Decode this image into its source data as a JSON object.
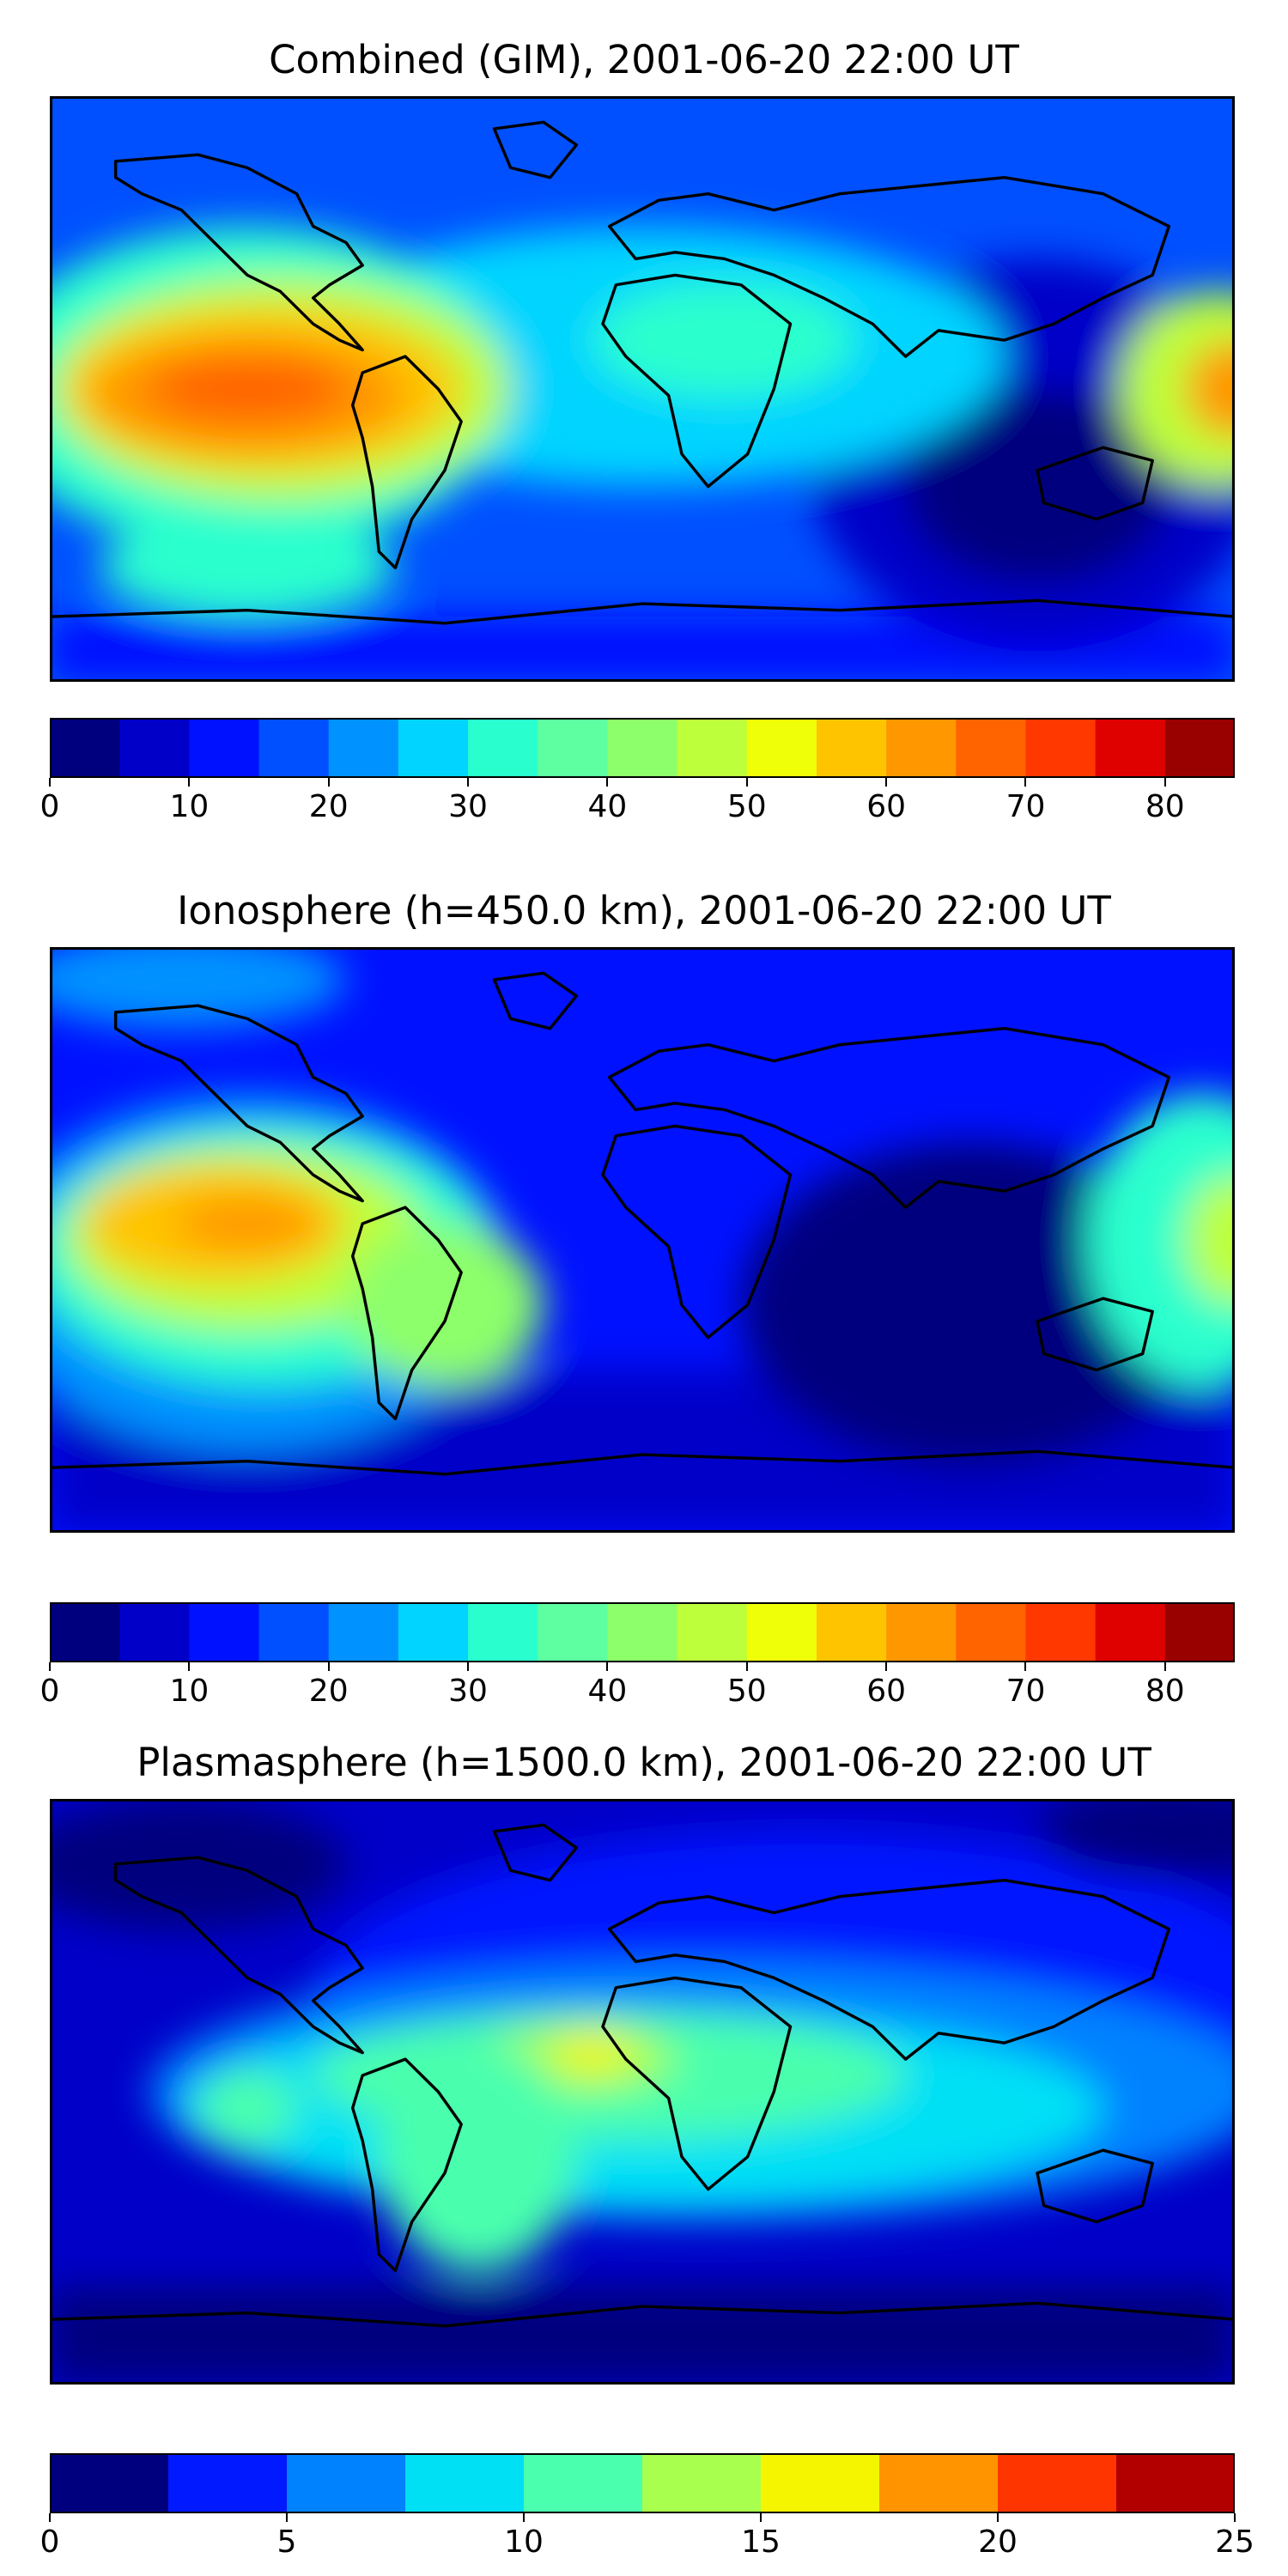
{
  "figures": [
    {
      "title": "Combined (GIM), 2001-06-20 22:00 UT",
      "colorbar": {
        "min": 0,
        "max": 85,
        "step": 5,
        "tick_labels": [
          "0",
          "10",
          "20",
          "30",
          "40",
          "50",
          "60",
          "70",
          "80"
        ],
        "tick_values": [
          0,
          10,
          20,
          30,
          40,
          50,
          60,
          70,
          80
        ]
      }
    },
    {
      "title": "Ionosphere  (h=450.0 km), 2001-06-20 22:00 UT",
      "colorbar": {
        "min": 0,
        "max": 85,
        "step": 5,
        "tick_labels": [
          "0",
          "10",
          "20",
          "30",
          "40",
          "50",
          "60",
          "70",
          "80"
        ],
        "tick_values": [
          0,
          10,
          20,
          30,
          40,
          50,
          60,
          70,
          80
        ]
      }
    },
    {
      "title": "Plasmasphere (h=1500.0 km), 2001-06-20 22:00 UT",
      "colorbar": {
        "min": 0,
        "max": 25,
        "step": 2.5,
        "tick_labels": [
          "0",
          "5",
          "10",
          "15",
          "20",
          "25"
        ],
        "tick_values": [
          0,
          5,
          10,
          15,
          20,
          25
        ]
      }
    }
  ],
  "colormap": "jet",
  "colorbar_colors_17": [
    "#00007f",
    "#0000c8",
    "#0011ff",
    "#0050ff",
    "#0092ff",
    "#00d4ff",
    "#29ffce",
    "#5dffa0",
    "#8dff6a",
    "#bdff3a",
    "#efff07",
    "#ffc400",
    "#ff9700",
    "#ff6400",
    "#ff3800",
    "#df0000",
    "#990000"
  ],
  "colorbar_colors_10": [
    "#00007f",
    "#0019ff",
    "#0082ff",
    "#00e0f5",
    "#4affad",
    "#a9ff4d",
    "#f5f500",
    "#ff9400",
    "#ff3500",
    "#b20000"
  ]
}
